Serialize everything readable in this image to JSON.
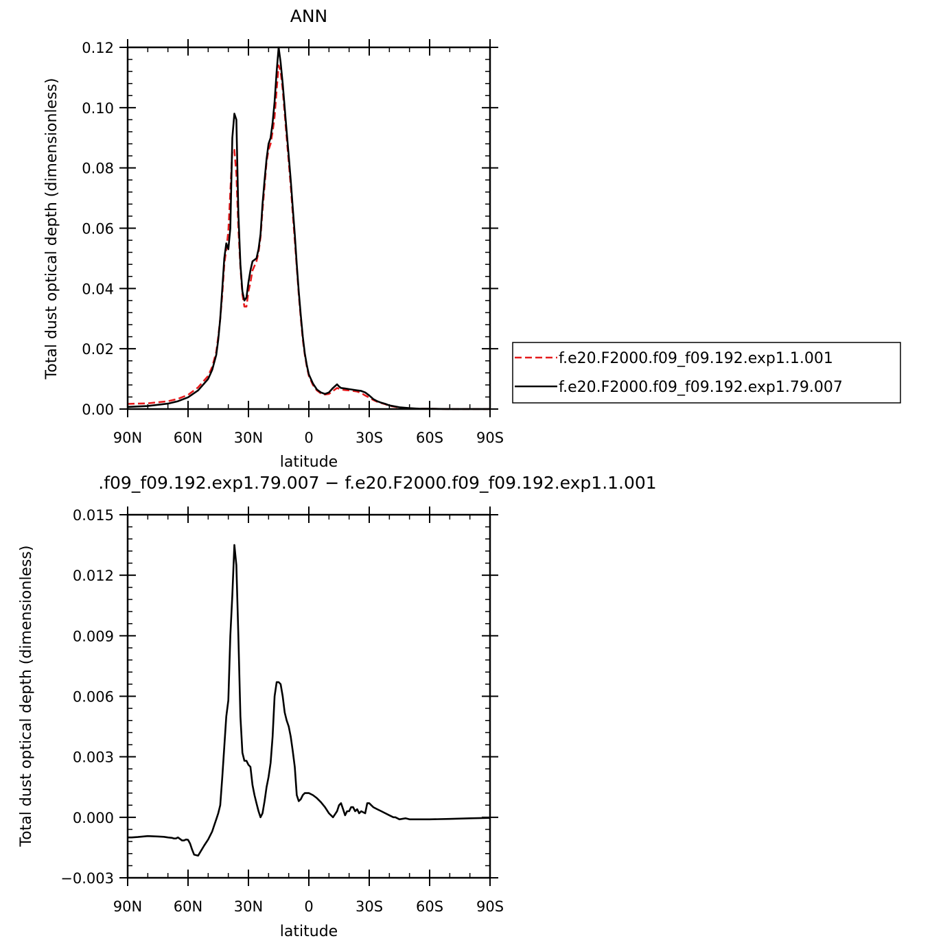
{
  "chart_data": [
    {
      "type": "line",
      "title": "ANN",
      "xlabel": "latitude",
      "ylabel": "Total dust optical depth (dimensionless)",
      "xlim": [
        90,
        -90
      ],
      "ylim": [
        0,
        0.12
      ],
      "xticks": [
        {
          "v": 90,
          "label": "90N"
        },
        {
          "v": 60,
          "label": "60N"
        },
        {
          "v": 30,
          "label": "30N"
        },
        {
          "v": 0,
          "label": "0"
        },
        {
          "v": -30,
          "label": "30S"
        },
        {
          "v": -60,
          "label": "60S"
        },
        {
          "v": -90,
          "label": "90S"
        }
      ],
      "yticks": [
        {
          "v": 0,
          "label": "0.00"
        },
        {
          "v": 0.02,
          "label": "0.02"
        },
        {
          "v": 0.04,
          "label": "0.04"
        },
        {
          "v": 0.06,
          "label": "0.06"
        },
        {
          "v": 0.08,
          "label": "0.08"
        },
        {
          "v": 0.1,
          "label": "0.10"
        },
        {
          "v": 0.12,
          "label": "0.12"
        }
      ],
      "legend_position": "right",
      "series": [
        {
          "name": "f.e20.F2000.f09_f09.192.exp1.1.001",
          "color": "#e41a1c",
          "dash": "dashed",
          "x": [
            90,
            80,
            70,
            65,
            60,
            55,
            50,
            48,
            46,
            45,
            44,
            43,
            42,
            41,
            40,
            39,
            38,
            37,
            36,
            35,
            34,
            33,
            32,
            31,
            30,
            29,
            28,
            26,
            25,
            24,
            23,
            22,
            21,
            20,
            19,
            18,
            17,
            16,
            15,
            14,
            13,
            12,
            11,
            10,
            9,
            8,
            7,
            6,
            5,
            4,
            3,
            2,
            1,
            0,
            -2,
            -4,
            -6,
            -8,
            -10,
            -12,
            -14,
            -16,
            -18,
            -20,
            -22,
            -24,
            -26,
            -28,
            -30,
            -32,
            -34,
            -36,
            -38,
            -40,
            -45,
            -50,
            -55,
            -60,
            -70,
            -80,
            -90
          ],
          "y": [
            0.0017,
            0.0019,
            0.0026,
            0.0034,
            0.0047,
            0.0072,
            0.011,
            0.014,
            0.019,
            0.024,
            0.03,
            0.038,
            0.048,
            0.053,
            0.059,
            0.072,
            0.086,
            0.086,
            0.078,
            0.06,
            0.047,
            0.038,
            0.034,
            0.034,
            0.039,
            0.042,
            0.046,
            0.049,
            0.052,
            0.057,
            0.066,
            0.074,
            0.082,
            0.086,
            0.088,
            0.092,
            0.097,
            0.106,
            0.114,
            0.112,
            0.106,
            0.098,
            0.09,
            0.082,
            0.074,
            0.065,
            0.056,
            0.047,
            0.038,
            0.03,
            0.023,
            0.018,
            0.014,
            0.011,
            0.008,
            0.0062,
            0.0052,
            0.0048,
            0.005,
            0.006,
            0.007,
            0.0065,
            0.0063,
            0.0062,
            0.006,
            0.0058,
            0.0053,
            0.0045,
            0.0038,
            0.003,
            0.0024,
            0.002,
            0.0016,
            0.0011,
            0.0005,
            0.0002,
            0.0001,
            0.0001,
            0.0,
            0.0,
            0.0
          ]
        },
        {
          "name": "f.e20.F2000.f09_f09.192.exp1.79.007",
          "color": "#000000",
          "dash": "solid",
          "x": [
            90,
            80,
            70,
            65,
            60,
            55,
            50,
            48,
            46,
            45,
            44,
            43,
            42,
            41,
            40,
            39,
            38,
            37,
            36,
            35,
            34,
            33,
            32,
            31,
            30,
            29,
            28,
            26,
            25,
            24,
            23,
            22,
            21,
            20,
            19,
            18,
            17,
            16,
            15,
            14,
            13,
            12,
            11,
            10,
            9,
            8,
            7,
            6,
            5,
            4,
            3,
            2,
            1,
            0,
            -2,
            -4,
            -6,
            -8,
            -10,
            -12,
            -14,
            -15,
            -16,
            -18,
            -20,
            -22,
            -24,
            -26,
            -28,
            -30,
            -32,
            -34,
            -36,
            -38,
            -40,
            -45,
            -50,
            -55,
            -60,
            -70,
            -80,
            -90
          ],
          "y": [
            0.0007,
            0.001,
            0.0018,
            0.0026,
            0.0039,
            0.0062,
            0.01,
            0.013,
            0.018,
            0.023,
            0.03,
            0.04,
            0.05,
            0.055,
            0.053,
            0.06,
            0.09,
            0.098,
            0.096,
            0.065,
            0.048,
            0.039,
            0.036,
            0.037,
            0.042,
            0.046,
            0.049,
            0.05,
            0.053,
            0.058,
            0.068,
            0.076,
            0.083,
            0.088,
            0.09,
            0.095,
            0.102,
            0.112,
            0.12,
            0.115,
            0.108,
            0.1,
            0.092,
            0.084,
            0.076,
            0.067,
            0.058,
            0.048,
            0.039,
            0.031,
            0.024,
            0.0185,
            0.0145,
            0.0115,
            0.0085,
            0.0065,
            0.0055,
            0.005,
            0.0055,
            0.007,
            0.0082,
            0.0075,
            0.007,
            0.0068,
            0.0066,
            0.0064,
            0.0062,
            0.006,
            0.0055,
            0.0045,
            0.0033,
            0.0026,
            0.0021,
            0.0017,
            0.0012,
            0.0006,
            0.0003,
            0.0001,
            0.0001,
            0.0,
            0.0,
            0.0
          ]
        }
      ]
    },
    {
      "type": "line",
      "title": ".f09_f09.192.exp1.79.007 − f.e20.F2000.f09_f09.192.exp1.1.001",
      "xlabel": "latitude",
      "ylabel": "Total dust optical depth (dimensionless)",
      "xlim": [
        90,
        -90
      ],
      "ylim": [
        -0.003,
        0.015
      ],
      "xticks": [
        {
          "v": 90,
          "label": "90N"
        },
        {
          "v": 60,
          "label": "60N"
        },
        {
          "v": 30,
          "label": "30N"
        },
        {
          "v": 0,
          "label": "0"
        },
        {
          "v": -30,
          "label": "30S"
        },
        {
          "v": -60,
          "label": "60S"
        },
        {
          "v": -90,
          "label": "90S"
        }
      ],
      "yticks": [
        {
          "v": -0.003,
          "label": "−0.003"
        },
        {
          "v": 0,
          "label": "0.000"
        },
        {
          "v": 0.003,
          "label": "0.003"
        },
        {
          "v": 0.006,
          "label": "0.006"
        },
        {
          "v": 0.009,
          "label": "0.009"
        },
        {
          "v": 0.012,
          "label": "0.012"
        },
        {
          "v": 0.015,
          "label": "0.015"
        }
      ],
      "series": [
        {
          "color": "#000000",
          "dash": "solid",
          "x": [
            90,
            88,
            85,
            80,
            75,
            72,
            70,
            68,
            67,
            66,
            65,
            63,
            62,
            61,
            60,
            59,
            58,
            57,
            55,
            52,
            50,
            48,
            47,
            46,
            45,
            44,
            43,
            42,
            41,
            40,
            39,
            38,
            37,
            36,
            35,
            34,
            33,
            32,
            31,
            30,
            29,
            28,
            27,
            26,
            25,
            24,
            23,
            22,
            21,
            20,
            19,
            18,
            17,
            16,
            15,
            14,
            13,
            12,
            11,
            10,
            9,
            8,
            7,
            6,
            5,
            4,
            3,
            2,
            1,
            0,
            -2,
            -4,
            -6,
            -8,
            -10,
            -12,
            -14,
            -15,
            -16,
            -17,
            -18,
            -19,
            -20,
            -21,
            -22,
            -23,
            -24,
            -25,
            -26,
            -27,
            -28,
            -29,
            -30,
            -31,
            -32,
            -34,
            -36,
            -38,
            -40,
            -42,
            -43,
            -45,
            -48,
            -50,
            -55,
            -60,
            -70,
            -80,
            -90
          ],
          "y": [
            -0.001,
            -0.001,
            -0.00098,
            -0.00093,
            -0.00095,
            -0.00097,
            -0.001,
            -0.00102,
            -0.00105,
            -0.00105,
            -0.001,
            -0.00115,
            -0.00115,
            -0.0011,
            -0.00112,
            -0.0013,
            -0.0016,
            -0.00185,
            -0.0019,
            -0.0014,
            -0.0011,
            -0.0007,
            -0.0004,
            -0.0001,
            0.0002,
            0.0006,
            0.002,
            0.0035,
            0.005,
            0.0058,
            0.009,
            0.011,
            0.0135,
            0.0125,
            0.009,
            0.005,
            0.0032,
            0.0028,
            0.0028,
            0.0026,
            0.0025,
            0.0016,
            0.0011,
            0.0007,
            0.0003,
            0.0,
            0.0002,
            0.0008,
            0.0015,
            0.002,
            0.0027,
            0.004,
            0.006,
            0.0067,
            0.0067,
            0.0066,
            0.006,
            0.0052,
            0.0048,
            0.0045,
            0.004,
            0.0033,
            0.0025,
            0.0011,
            0.0008,
            0.0009,
            0.0011,
            0.0012,
            0.0012,
            0.0012,
            0.0011,
            0.00095,
            0.00075,
            0.0005,
            0.0002,
            0.0,
            0.0003,
            0.0006,
            0.0007,
            0.0004,
            0.0001,
            0.0003,
            0.0003,
            0.0005,
            0.0005,
            0.0003,
            0.0004,
            0.0002,
            0.0003,
            0.00025,
            0.0002,
            0.0007,
            0.0007,
            0.0006,
            0.0005,
            0.0004,
            0.0003,
            0.0002,
            0.0001,
            0.0,
            0.0,
            -0.0001,
            -5e-05,
            -0.0001,
            -0.0001,
            -0.0001,
            -8e-05,
            -5e-05,
            -3e-05
          ]
        }
      ]
    }
  ]
}
